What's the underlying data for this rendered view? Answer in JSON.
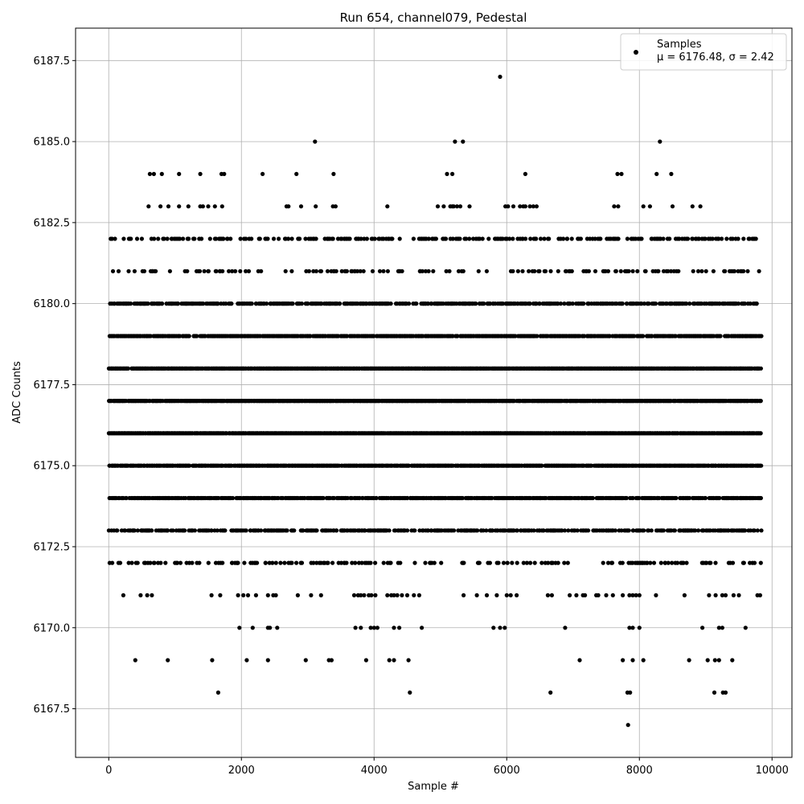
{
  "chart_data": {
    "type": "scatter",
    "title": "Run 654, channel079, Pedestal",
    "xlabel": "Sample #",
    "ylabel": "ADC Counts",
    "xlim": [
      -500,
      10300
    ],
    "ylim": [
      6166,
      6188.5
    ],
    "x_ticks": [
      0,
      2000,
      4000,
      6000,
      8000,
      10000
    ],
    "y_ticks": [
      6167.5,
      6170.0,
      6172.5,
      6175.0,
      6177.5,
      6180.0,
      6182.5,
      6185.0,
      6187.5
    ],
    "x_tick_labels": [
      "0",
      "2000",
      "4000",
      "6000",
      "8000",
      "10000"
    ],
    "y_tick_labels": [
      "6167.5",
      "6170.0",
      "6172.5",
      "6175.0",
      "6177.5",
      "6180.0",
      "6182.5",
      "6185.0",
      "6187.5"
    ],
    "grid": true,
    "legend_position": "top-right",
    "marker_color": "#000000",
    "legend": {
      "series_name": "Samples",
      "stats_text": "μ = 6176.48, σ = 2.42"
    },
    "sample_range": [
      0,
      9840
    ],
    "series": [
      {
        "name": "Samples",
        "bands": [
          {
            "y": 6173,
            "x_ranges": [
              [
                0,
                9840
              ]
            ],
            "density": 0.5
          },
          {
            "y": 6174,
            "x_ranges": [
              [
                0,
                9840
              ]
            ],
            "density": 0.7
          },
          {
            "y": 6175,
            "x_ranges": [
              [
                0,
                9840
              ]
            ],
            "density": 0.9
          },
          {
            "y": 6176,
            "x_ranges": [
              [
                0,
                9840
              ]
            ],
            "density": 0.95
          },
          {
            "y": 6177,
            "x_ranges": [
              [
                0,
                9840
              ]
            ],
            "density": 0.9
          },
          {
            "y": 6178,
            "x_ranges": [
              [
                0,
                9840
              ]
            ],
            "density": 0.95
          },
          {
            "y": 6179,
            "x_ranges": [
              [
                0,
                9840
              ]
            ],
            "density": 0.8
          },
          {
            "y": 6180,
            "x_ranges": [
              [
                0,
                9840
              ]
            ],
            "density": 0.55
          },
          {
            "y": 6181,
            "x_ranges": [
              [
                0,
                9840
              ]
            ],
            "density": 0.18
          },
          {
            "y": 6182,
            "x_ranges": [
              [
                0,
                9840
              ]
            ],
            "density": 0.28
          },
          {
            "y": 6172,
            "x_ranges": [
              [
                0,
                9840
              ]
            ],
            "density": 0.2
          }
        ],
        "points": [
          [
            220,
            6171
          ],
          [
            480,
            6171
          ],
          [
            580,
            6171
          ],
          [
            650,
            6171
          ],
          [
            1550,
            6171
          ],
          [
            1680,
            6171
          ],
          [
            1950,
            6171
          ],
          [
            2030,
            6171
          ],
          [
            2100,
            6171
          ],
          [
            2220,
            6171
          ],
          [
            2400,
            6171
          ],
          [
            2480,
            6171
          ],
          [
            2520,
            6171
          ],
          [
            2850,
            6171
          ],
          [
            3050,
            6171
          ],
          [
            3200,
            6171
          ],
          [
            3700,
            6171
          ],
          [
            3760,
            6171
          ],
          [
            3800,
            6171
          ],
          [
            3850,
            6171
          ],
          [
            3920,
            6171
          ],
          [
            3960,
            6171
          ],
          [
            4020,
            6171
          ],
          [
            4200,
            6171
          ],
          [
            4260,
            6171
          ],
          [
            4300,
            6171
          ],
          [
            4350,
            6171
          ],
          [
            4420,
            6171
          ],
          [
            4500,
            6171
          ],
          [
            4600,
            6171
          ],
          [
            4680,
            6171
          ],
          [
            5350,
            6171
          ],
          [
            5550,
            6171
          ],
          [
            5700,
            6171
          ],
          [
            5850,
            6171
          ],
          [
            6000,
            6171
          ],
          [
            6060,
            6171
          ],
          [
            6150,
            6171
          ],
          [
            6620,
            6171
          ],
          [
            6680,
            6171
          ],
          [
            6950,
            6171
          ],
          [
            7050,
            6171
          ],
          [
            7150,
            6171
          ],
          [
            7180,
            6171
          ],
          [
            7350,
            6171
          ],
          [
            7380,
            6171
          ],
          [
            7500,
            6171
          ],
          [
            7600,
            6171
          ],
          [
            7750,
            6171
          ],
          [
            7850,
            6171
          ],
          [
            7900,
            6171
          ],
          [
            7950,
            6171
          ],
          [
            8000,
            6171
          ],
          [
            8250,
            6171
          ],
          [
            8680,
            6171
          ],
          [
            9050,
            6171
          ],
          [
            9150,
            6171
          ],
          [
            9250,
            6171
          ],
          [
            9300,
            6171
          ],
          [
            9420,
            6171
          ],
          [
            9500,
            6171
          ],
          [
            9780,
            6171
          ],
          [
            9820,
            6171
          ],
          [
            1970,
            6170
          ],
          [
            2170,
            6170
          ],
          [
            2400,
            6170
          ],
          [
            2430,
            6170
          ],
          [
            2540,
            6170
          ],
          [
            3720,
            6170
          ],
          [
            3800,
            6170
          ],
          [
            3950,
            6170
          ],
          [
            4000,
            6170
          ],
          [
            4050,
            6170
          ],
          [
            4300,
            6170
          ],
          [
            4380,
            6170
          ],
          [
            4720,
            6170
          ],
          [
            5800,
            6170
          ],
          [
            5900,
            6170
          ],
          [
            5970,
            6170
          ],
          [
            6880,
            6170
          ],
          [
            7850,
            6170
          ],
          [
            7900,
            6170
          ],
          [
            8000,
            6170
          ],
          [
            8950,
            6170
          ],
          [
            9200,
            6170
          ],
          [
            9250,
            6170
          ],
          [
            9600,
            6170
          ],
          [
            400,
            6169
          ],
          [
            890,
            6169
          ],
          [
            1560,
            6169
          ],
          [
            2080,
            6169
          ],
          [
            2400,
            6169
          ],
          [
            2970,
            6169
          ],
          [
            3320,
            6169
          ],
          [
            3360,
            6169
          ],
          [
            3880,
            6169
          ],
          [
            4230,
            6169
          ],
          [
            4300,
            6169
          ],
          [
            4520,
            6169
          ],
          [
            7100,
            6169
          ],
          [
            7750,
            6169
          ],
          [
            7900,
            6169
          ],
          [
            8060,
            6169
          ],
          [
            8750,
            6169
          ],
          [
            9030,
            6169
          ],
          [
            9140,
            6169
          ],
          [
            9200,
            6169
          ],
          [
            9400,
            6169
          ],
          [
            1650,
            6168
          ],
          [
            4540,
            6168
          ],
          [
            6660,
            6168
          ],
          [
            7820,
            6168
          ],
          [
            7860,
            6168
          ],
          [
            9130,
            6168
          ],
          [
            9260,
            6168
          ],
          [
            9300,
            6168
          ],
          [
            7830,
            6167
          ],
          [
            600,
            6183
          ],
          [
            780,
            6183
          ],
          [
            900,
            6183
          ],
          [
            1060,
            6183
          ],
          [
            1200,
            6183
          ],
          [
            1380,
            6183
          ],
          [
            1420,
            6183
          ],
          [
            1500,
            6183
          ],
          [
            1600,
            6183
          ],
          [
            1710,
            6183
          ],
          [
            2680,
            6183
          ],
          [
            2710,
            6183
          ],
          [
            2900,
            6183
          ],
          [
            3120,
            6183
          ],
          [
            3380,
            6183
          ],
          [
            3420,
            6183
          ],
          [
            4200,
            6183
          ],
          [
            4960,
            6183
          ],
          [
            5050,
            6183
          ],
          [
            5150,
            6183
          ],
          [
            5180,
            6183
          ],
          [
            5200,
            6183
          ],
          [
            5250,
            6183
          ],
          [
            5300,
            6183
          ],
          [
            5440,
            6183
          ],
          [
            5980,
            6183
          ],
          [
            6020,
            6183
          ],
          [
            6100,
            6183
          ],
          [
            6200,
            6183
          ],
          [
            6250,
            6183
          ],
          [
            6280,
            6183
          ],
          [
            6350,
            6183
          ],
          [
            6400,
            6183
          ],
          [
            6450,
            6183
          ],
          [
            7620,
            6183
          ],
          [
            7680,
            6183
          ],
          [
            8060,
            6183
          ],
          [
            8160,
            6183
          ],
          [
            8500,
            6183
          ],
          [
            8800,
            6183
          ],
          [
            8920,
            6183
          ],
          [
            620,
            6184
          ],
          [
            680,
            6184
          ],
          [
            800,
            6184
          ],
          [
            1060,
            6184
          ],
          [
            1380,
            6184
          ],
          [
            1700,
            6184
          ],
          [
            1740,
            6184
          ],
          [
            2320,
            6184
          ],
          [
            2830,
            6184
          ],
          [
            3390,
            6184
          ],
          [
            5100,
            6184
          ],
          [
            5180,
            6184
          ],
          [
            6280,
            6184
          ],
          [
            7670,
            6184
          ],
          [
            7730,
            6184
          ],
          [
            8260,
            6184
          ],
          [
            8480,
            6184
          ],
          [
            3110,
            6185
          ],
          [
            5220,
            6185
          ],
          [
            5340,
            6185
          ],
          [
            8310,
            6185
          ],
          [
            5900,
            6187
          ]
        ]
      }
    ]
  }
}
